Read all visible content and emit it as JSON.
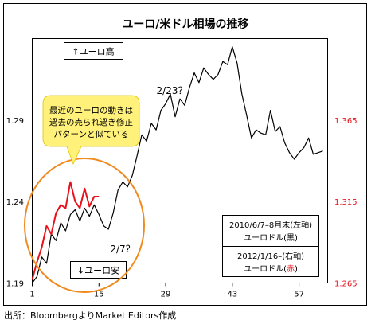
{
  "chart_data": {
    "type": "line",
    "title": "ユーロ/米ドル相場の推移",
    "x_ticks": [
      1,
      15,
      29,
      43,
      57
    ],
    "x_range": [
      1,
      63
    ],
    "left_axis": {
      "ticks": [
        "1.19",
        "1.24",
        "1.29"
      ],
      "range": [
        1.19,
        1.34
      ]
    },
    "right_axis": {
      "ticks": [
        "1.265",
        "1.315",
        "1.365"
      ],
      "range": [
        1.265,
        1.415
      ],
      "color": "#e8101a"
    },
    "series": [
      {
        "axis": "left",
        "color": "#000000",
        "x": [
          1,
          2,
          3,
          4,
          5,
          6,
          7,
          8,
          9,
          10,
          11,
          12,
          13,
          14,
          15,
          16,
          17,
          18,
          19,
          20,
          21,
          22,
          23,
          24,
          25,
          26,
          27,
          28,
          29,
          30,
          31,
          32,
          33,
          34,
          35,
          36,
          37,
          38,
          39,
          40,
          41,
          42,
          43,
          44,
          45,
          46,
          47,
          48,
          49,
          50,
          51,
          52,
          53,
          54,
          55,
          56,
          57,
          58,
          59,
          60,
          61,
          62
        ],
        "values": [
          1.19,
          1.194,
          1.206,
          1.202,
          1.22,
          1.216,
          1.227,
          1.222,
          1.232,
          1.235,
          1.228,
          1.236,
          1.231,
          1.238,
          1.232,
          1.225,
          1.223,
          1.233,
          1.247,
          1.252,
          1.249,
          1.256,
          1.268,
          1.281,
          1.277,
          1.288,
          1.284,
          1.296,
          1.3,
          1.306,
          1.292,
          1.303,
          1.299,
          1.31,
          1.319,
          1.313,
          1.322,
          1.318,
          1.315,
          1.318,
          1.326,
          1.324,
          1.335,
          1.325,
          1.306,
          1.293,
          1.279,
          1.284,
          1.282,
          1.281,
          1.296,
          1.283,
          1.286,
          1.276,
          1.27,
          1.266,
          1.27,
          1.273,
          1.279,
          1.269,
          1.27,
          1.271
        ]
      },
      {
        "axis": "right",
        "color": "#e8101a",
        "x": [
          1,
          2,
          3,
          4,
          5,
          6,
          7,
          8,
          9,
          10,
          11,
          12,
          13,
          14,
          15
        ],
        "values": [
          1.267,
          1.278,
          1.287,
          1.3,
          1.295,
          1.308,
          1.313,
          1.311,
          1.327,
          1.315,
          1.311,
          1.323,
          1.312,
          1.318,
          1.318
        ]
      }
    ],
    "annotations": {
      "euro_high": "↑ユーロ高",
      "euro_low": "↓ユーロ安",
      "label_223": "2/23？",
      "label_27": "2/7？",
      "callout_lines": [
        "最近のユーロの動きは",
        "過去の売られ過ぎ修正",
        "パターンと似ている"
      ]
    },
    "legend": {
      "black": {
        "line1": "2010/6/7–8月末(左軸)",
        "line2": "ユーロドル(黒)"
      },
      "red": {
        "line1": "2012/1/16–(右軸)",
        "line2_prefix": "ユーロドル(",
        "line2_red": "赤",
        "line2_suffix": ")"
      }
    },
    "source": "出所：BloombergよりMarket Editors作成"
  }
}
